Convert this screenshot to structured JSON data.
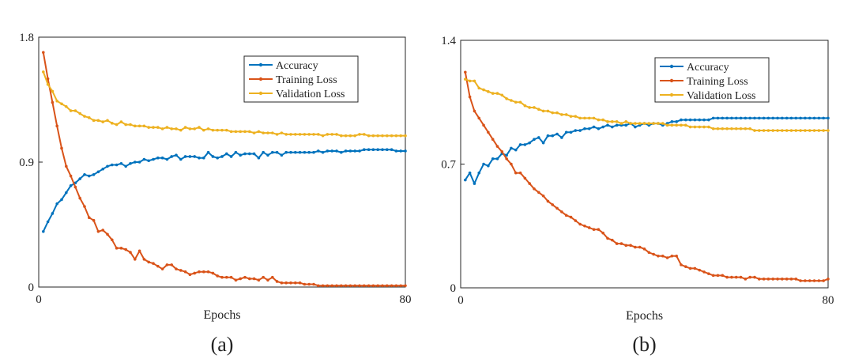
{
  "chart_data": [
    {
      "type": "line",
      "caption": "(a)",
      "xlabel": "Epochs",
      "ylabel": "",
      "xlim": [
        0,
        80
      ],
      "ylim": [
        0,
        1.8
      ],
      "x_ticks": [
        0,
        80
      ],
      "y_ticks": [
        0,
        0.9,
        1.8
      ],
      "x_tick_labels": [
        "0",
        "80"
      ],
      "y_tick_labels": [
        "0",
        "0.9",
        "1.8"
      ],
      "grid": false,
      "legend_position": "top-right",
      "series": [
        {
          "name": "Accuracy",
          "color": "#0072BD",
          "x": [
            1,
            2,
            3,
            4,
            5,
            6,
            7,
            8,
            9,
            10,
            11,
            12,
            13,
            14,
            15,
            16,
            17,
            18,
            19,
            20,
            21,
            22,
            23,
            24,
            25,
            26,
            27,
            28,
            29,
            30,
            31,
            32,
            33,
            34,
            35,
            36,
            37,
            38,
            39,
            40,
            41,
            42,
            43,
            44,
            45,
            46,
            47,
            48,
            49,
            50,
            51,
            52,
            53,
            54,
            55,
            56,
            57,
            58,
            59,
            60,
            61,
            62,
            63,
            64,
            65,
            66,
            67,
            68,
            69,
            70,
            71,
            72,
            73,
            74,
            75,
            76,
            77,
            78,
            79,
            80
          ],
          "values": [
            0.4,
            0.47,
            0.53,
            0.6,
            0.63,
            0.68,
            0.73,
            0.75,
            0.78,
            0.81,
            0.8,
            0.81,
            0.83,
            0.85,
            0.87,
            0.88,
            0.88,
            0.89,
            0.87,
            0.89,
            0.9,
            0.9,
            0.92,
            0.91,
            0.92,
            0.93,
            0.93,
            0.92,
            0.94,
            0.95,
            0.92,
            0.94,
            0.94,
            0.94,
            0.93,
            0.93,
            0.97,
            0.94,
            0.93,
            0.94,
            0.96,
            0.94,
            0.97,
            0.95,
            0.96,
            0.96,
            0.96,
            0.93,
            0.97,
            0.95,
            0.97,
            0.97,
            0.95,
            0.97,
            0.97,
            0.97,
            0.97,
            0.97,
            0.97,
            0.97,
            0.98,
            0.97,
            0.98,
            0.98,
            0.98,
            0.97,
            0.98,
            0.98,
            0.98,
            0.98,
            0.99,
            0.99,
            0.99,
            0.99,
            0.99,
            0.99,
            0.99,
            0.98,
            0.98,
            0.98
          ]
        },
        {
          "name": "Training Loss",
          "color": "#D95319",
          "x": [
            1,
            2,
            3,
            4,
            5,
            6,
            7,
            8,
            9,
            10,
            11,
            12,
            13,
            14,
            15,
            16,
            17,
            18,
            19,
            20,
            21,
            22,
            23,
            24,
            25,
            26,
            27,
            28,
            29,
            30,
            31,
            32,
            33,
            34,
            35,
            36,
            37,
            38,
            39,
            40,
            41,
            42,
            43,
            44,
            45,
            46,
            47,
            48,
            49,
            50,
            51,
            52,
            53,
            54,
            55,
            56,
            57,
            58,
            59,
            60,
            61,
            62,
            63,
            64,
            65,
            66,
            67,
            68,
            69,
            70,
            71,
            72,
            73,
            74,
            75,
            76,
            77,
            78,
            79,
            80
          ],
          "values": [
            1.69,
            1.5,
            1.33,
            1.16,
            1.0,
            0.87,
            0.8,
            0.72,
            0.64,
            0.58,
            0.5,
            0.48,
            0.4,
            0.41,
            0.38,
            0.34,
            0.28,
            0.28,
            0.27,
            0.25,
            0.2,
            0.26,
            0.2,
            0.18,
            0.17,
            0.15,
            0.13,
            0.16,
            0.16,
            0.13,
            0.12,
            0.11,
            0.09,
            0.1,
            0.11,
            0.11,
            0.11,
            0.1,
            0.08,
            0.07,
            0.07,
            0.07,
            0.05,
            0.06,
            0.07,
            0.06,
            0.06,
            0.05,
            0.07,
            0.05,
            0.07,
            0.04,
            0.03,
            0.03,
            0.03,
            0.03,
            0.03,
            0.02,
            0.02,
            0.02,
            0.01,
            0.01,
            0.01,
            0.01,
            0.01,
            0.01,
            0.01,
            0.01,
            0.01,
            0.01,
            0.01,
            0.01,
            0.01,
            0.01,
            0.01,
            0.01,
            0.01,
            0.01,
            0.01,
            0.01
          ]
        },
        {
          "name": "Validation Loss",
          "color": "#EDB120",
          "x": [
            1,
            2,
            3,
            4,
            5,
            6,
            7,
            8,
            9,
            10,
            11,
            12,
            13,
            14,
            15,
            16,
            17,
            18,
            19,
            20,
            21,
            22,
            23,
            24,
            25,
            26,
            27,
            28,
            29,
            30,
            31,
            32,
            33,
            34,
            35,
            36,
            37,
            38,
            39,
            40,
            41,
            42,
            43,
            44,
            45,
            46,
            47,
            48,
            49,
            50,
            51,
            52,
            53,
            54,
            55,
            56,
            57,
            58,
            59,
            60,
            61,
            62,
            63,
            64,
            65,
            66,
            67,
            68,
            69,
            70,
            71,
            72,
            73,
            74,
            75,
            76,
            77,
            78,
            79,
            80
          ],
          "values": [
            1.55,
            1.46,
            1.41,
            1.34,
            1.32,
            1.3,
            1.27,
            1.27,
            1.25,
            1.23,
            1.22,
            1.2,
            1.2,
            1.19,
            1.2,
            1.18,
            1.17,
            1.19,
            1.17,
            1.17,
            1.16,
            1.16,
            1.16,
            1.15,
            1.15,
            1.15,
            1.14,
            1.15,
            1.14,
            1.14,
            1.13,
            1.15,
            1.14,
            1.14,
            1.15,
            1.13,
            1.14,
            1.13,
            1.13,
            1.13,
            1.13,
            1.12,
            1.12,
            1.12,
            1.12,
            1.12,
            1.11,
            1.12,
            1.11,
            1.11,
            1.11,
            1.1,
            1.11,
            1.1,
            1.1,
            1.1,
            1.1,
            1.1,
            1.1,
            1.1,
            1.1,
            1.09,
            1.1,
            1.1,
            1.1,
            1.09,
            1.09,
            1.09,
            1.09,
            1.1,
            1.1,
            1.09,
            1.09,
            1.09,
            1.09,
            1.09,
            1.09,
            1.09,
            1.09,
            1.09
          ]
        }
      ]
    },
    {
      "type": "line",
      "caption": "(b)",
      "xlabel": "Epochs",
      "ylabel": "",
      "xlim": [
        0,
        80
      ],
      "ylim": [
        0,
        1.4
      ],
      "x_ticks": [
        0,
        80
      ],
      "y_ticks": [
        0,
        0.7,
        1.4
      ],
      "x_tick_labels": [
        "0",
        "80"
      ],
      "y_tick_labels": [
        "0",
        "0.7",
        "1.4"
      ],
      "grid": false,
      "legend_position": "top-right",
      "series": [
        {
          "name": "Accuracy",
          "color": "#0072BD",
          "x": [
            1,
            2,
            3,
            4,
            5,
            6,
            7,
            8,
            9,
            10,
            11,
            12,
            13,
            14,
            15,
            16,
            17,
            18,
            19,
            20,
            21,
            22,
            23,
            24,
            25,
            26,
            27,
            28,
            29,
            30,
            31,
            32,
            33,
            34,
            35,
            36,
            37,
            38,
            39,
            40,
            41,
            42,
            43,
            44,
            45,
            46,
            47,
            48,
            49,
            50,
            51,
            52,
            53,
            54,
            55,
            56,
            57,
            58,
            59,
            60,
            61,
            62,
            63,
            64,
            65,
            66,
            67,
            68,
            69,
            70,
            71,
            72,
            73,
            74,
            75,
            76,
            77,
            78,
            79,
            80
          ],
          "values": [
            0.61,
            0.65,
            0.59,
            0.65,
            0.7,
            0.69,
            0.73,
            0.73,
            0.76,
            0.75,
            0.79,
            0.78,
            0.81,
            0.81,
            0.82,
            0.84,
            0.85,
            0.82,
            0.86,
            0.86,
            0.87,
            0.85,
            0.88,
            0.88,
            0.89,
            0.89,
            0.9,
            0.9,
            0.91,
            0.9,
            0.91,
            0.92,
            0.91,
            0.92,
            0.92,
            0.92,
            0.93,
            0.91,
            0.92,
            0.93,
            0.92,
            0.93,
            0.93,
            0.92,
            0.93,
            0.94,
            0.94,
            0.95,
            0.95,
            0.95,
            0.95,
            0.95,
            0.95,
            0.95,
            0.96,
            0.96,
            0.96,
            0.96,
            0.96,
            0.96,
            0.96,
            0.96,
            0.96,
            0.96,
            0.96,
            0.96,
            0.96,
            0.96,
            0.96,
            0.96,
            0.96,
            0.96,
            0.96,
            0.96,
            0.96,
            0.96,
            0.96,
            0.96,
            0.96,
            0.96
          ]
        },
        {
          "name": "Training Loss",
          "color": "#D95319",
          "x": [
            1,
            2,
            3,
            4,
            5,
            6,
            7,
            8,
            9,
            10,
            11,
            12,
            13,
            14,
            15,
            16,
            17,
            18,
            19,
            20,
            21,
            22,
            23,
            24,
            25,
            26,
            27,
            28,
            29,
            30,
            31,
            32,
            33,
            34,
            35,
            36,
            37,
            38,
            39,
            40,
            41,
            42,
            43,
            44,
            45,
            46,
            47,
            48,
            49,
            50,
            51,
            52,
            53,
            54,
            55,
            56,
            57,
            58,
            59,
            60,
            61,
            62,
            63,
            64,
            65,
            66,
            67,
            68,
            69,
            70,
            71,
            72,
            73,
            74,
            75,
            76,
            77,
            78,
            79,
            80
          ],
          "values": [
            1.22,
            1.08,
            1.0,
            0.96,
            0.92,
            0.88,
            0.84,
            0.8,
            0.77,
            0.73,
            0.7,
            0.65,
            0.65,
            0.62,
            0.59,
            0.56,
            0.54,
            0.52,
            0.49,
            0.47,
            0.45,
            0.43,
            0.41,
            0.4,
            0.38,
            0.36,
            0.35,
            0.34,
            0.33,
            0.33,
            0.31,
            0.28,
            0.27,
            0.25,
            0.25,
            0.24,
            0.24,
            0.23,
            0.23,
            0.22,
            0.2,
            0.19,
            0.18,
            0.18,
            0.17,
            0.18,
            0.18,
            0.13,
            0.12,
            0.11,
            0.11,
            0.1,
            0.09,
            0.08,
            0.07,
            0.07,
            0.07,
            0.06,
            0.06,
            0.06,
            0.06,
            0.05,
            0.06,
            0.06,
            0.05,
            0.05,
            0.05,
            0.05,
            0.05,
            0.05,
            0.05,
            0.05,
            0.05,
            0.04,
            0.04,
            0.04,
            0.04,
            0.04,
            0.04,
            0.05
          ]
        },
        {
          "name": "Validation Loss",
          "color": "#EDB120",
          "x": [
            1,
            2,
            3,
            4,
            5,
            6,
            7,
            8,
            9,
            10,
            11,
            12,
            13,
            14,
            15,
            16,
            17,
            18,
            19,
            20,
            21,
            22,
            23,
            24,
            25,
            26,
            27,
            28,
            29,
            30,
            31,
            32,
            33,
            34,
            35,
            36,
            37,
            38,
            39,
            40,
            41,
            42,
            43,
            44,
            45,
            46,
            47,
            48,
            49,
            50,
            51,
            52,
            53,
            54,
            55,
            56,
            57,
            58,
            59,
            60,
            61,
            62,
            63,
            64,
            65,
            66,
            67,
            68,
            69,
            70,
            71,
            72,
            73,
            74,
            75,
            76,
            77,
            78,
            79,
            80
          ],
          "values": [
            1.18,
            1.17,
            1.17,
            1.13,
            1.12,
            1.11,
            1.1,
            1.1,
            1.09,
            1.07,
            1.06,
            1.05,
            1.05,
            1.03,
            1.02,
            1.02,
            1.01,
            1.0,
            1.0,
            0.99,
            0.99,
            0.98,
            0.98,
            0.97,
            0.97,
            0.96,
            0.96,
            0.96,
            0.96,
            0.95,
            0.95,
            0.94,
            0.94,
            0.94,
            0.93,
            0.94,
            0.93,
            0.93,
            0.93,
            0.93,
            0.93,
            0.93,
            0.93,
            0.93,
            0.92,
            0.92,
            0.92,
            0.92,
            0.92,
            0.91,
            0.91,
            0.91,
            0.91,
            0.91,
            0.9,
            0.9,
            0.9,
            0.9,
            0.9,
            0.9,
            0.9,
            0.9,
            0.9,
            0.89,
            0.89,
            0.89,
            0.89,
            0.89,
            0.89,
            0.89,
            0.89,
            0.89,
            0.89,
            0.89,
            0.89,
            0.89,
            0.89,
            0.89,
            0.89,
            0.89
          ]
        }
      ]
    }
  ]
}
